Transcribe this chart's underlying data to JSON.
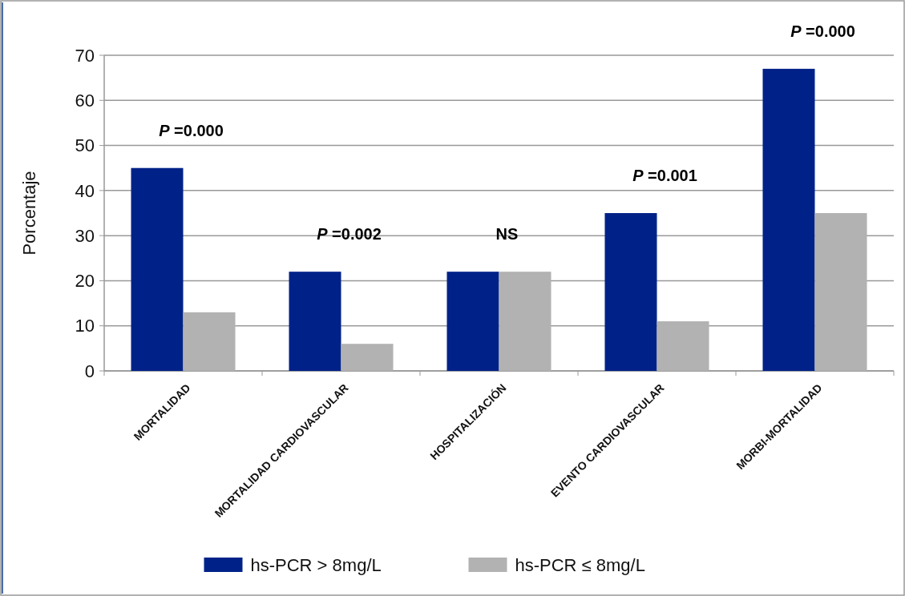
{
  "chart_data": {
    "type": "bar",
    "ylabel": "Porcentaje",
    "categories": [
      "MORTALIDAD",
      "MORTALIDAD CARDIOVASCULAR",
      "HOSPITALIZACIÓN",
      "EVENTO CARDIOVASCULAR",
      "MORBI-MORTALIDAD"
    ],
    "series": [
      {
        "name": "hs-PCR > 8mg/L",
        "color": "#002288",
        "values": [
          45,
          22,
          22,
          35,
          67
        ]
      },
      {
        "name": "hs-PCR ≤ 8mg/L",
        "color": "#b2b2b2",
        "values": [
          13,
          6,
          22,
          11,
          35
        ]
      }
    ],
    "ylim": [
      0,
      70
    ],
    "yticks": [
      0,
      10,
      20,
      30,
      40,
      50,
      60,
      70
    ],
    "grid": "y",
    "legend": "bottom",
    "annotations": [
      "P =0.000",
      "P =0.002",
      "NS",
      "P =0.001",
      "P =0.000"
    ]
  }
}
